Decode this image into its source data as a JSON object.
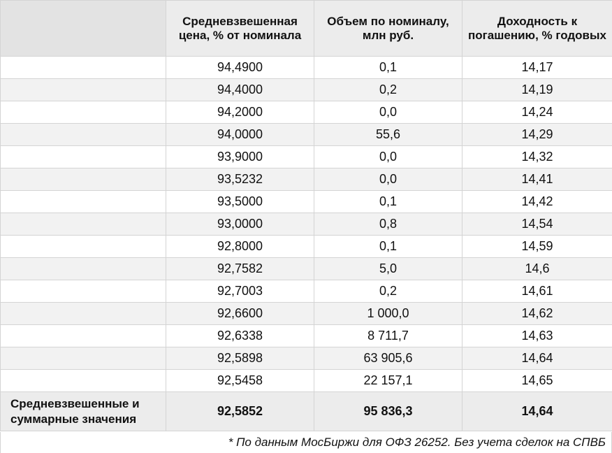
{
  "headers": {
    "col0": "",
    "col1": "Средневзвешенная цена, % от номинала",
    "col2": "Объем по номиналу, млн руб.",
    "col3": "Доходность к погашению, % годовых"
  },
  "rows": [
    {
      "label": "",
      "price": "94,4900",
      "volume": "0,1",
      "yield": "14,17"
    },
    {
      "label": "",
      "price": "94,4000",
      "volume": "0,2",
      "yield": "14,19"
    },
    {
      "label": "",
      "price": "94,2000",
      "volume": "0,0",
      "yield": "14,24"
    },
    {
      "label": "",
      "price": "94,0000",
      "volume": "55,6",
      "yield": "14,29"
    },
    {
      "label": "",
      "price": "93,9000",
      "volume": "0,0",
      "yield": "14,32"
    },
    {
      "label": "",
      "price": "93,5232",
      "volume": "0,0",
      "yield": "14,41"
    },
    {
      "label": "",
      "price": "93,5000",
      "volume": "0,1",
      "yield": "14,42"
    },
    {
      "label": "",
      "price": "93,0000",
      "volume": "0,8",
      "yield": "14,54"
    },
    {
      "label": "",
      "price": "92,8000",
      "volume": "0,1",
      "yield": "14,59"
    },
    {
      "label": "",
      "price": "92,7582",
      "volume": "5,0",
      "yield": "14,6"
    },
    {
      "label": "",
      "price": "92,7003",
      "volume": "0,2",
      "yield": "14,61"
    },
    {
      "label": "",
      "price": "92,6600",
      "volume": "1 000,0",
      "yield": "14,62"
    },
    {
      "label": "",
      "price": "92,6338",
      "volume": "8 711,7",
      "yield": "14,63"
    },
    {
      "label": "",
      "price": "92,5898",
      "volume": "63 905,6",
      "yield": "14,64"
    },
    {
      "label": "",
      "price": "92,5458",
      "volume": "22 157,1",
      "yield": "14,65"
    }
  ],
  "total": {
    "label": "Средневзвешенные и суммарные значения",
    "price": "92,5852",
    "volume": "95 836,3",
    "yield": "14,64"
  },
  "footnote": "* По данным МосБиржи для ОФЗ 26252. Без учета сделок на СПВБ"
}
